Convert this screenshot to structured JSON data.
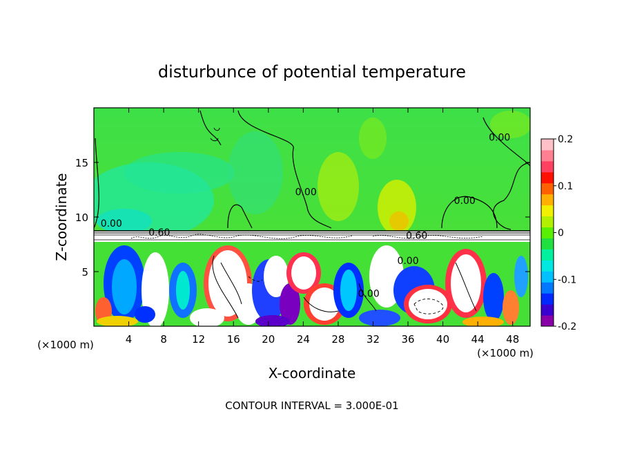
{
  "chart_data": {
    "type": "heatmap",
    "title": "disturbunce of potential temperature",
    "xlabel": "X-coordinate",
    "ylabel": "Z-coordinate",
    "x_unit_left": "(×1000 m)",
    "x_unit_right": "(×1000 m)",
    "xlim": [
      0,
      50
    ],
    "ylim": [
      0,
      20
    ],
    "x_ticks": [
      4,
      8,
      12,
      16,
      20,
      24,
      28,
      32,
      36,
      40,
      44,
      48
    ],
    "y_ticks": [
      5,
      10,
      15
    ],
    "colorbar": {
      "range": [
        -0.2,
        0.2
      ],
      "labels": [
        "0.2",
        "0.1",
        "0",
        "-0.1",
        "-0.2"
      ],
      "label_values": [
        0.2,
        0.1,
        0,
        -0.1,
        -0.2
      ],
      "colors": [
        "#8a00a8",
        "#3a00d0",
        "#0028ff",
        "#0078ff",
        "#00c0ff",
        "#00e8e0",
        "#00f0a0",
        "#20e040",
        "#58f000",
        "#b0f000",
        "#f0f000",
        "#ffb000",
        "#ff6000",
        "#ff1000",
        "#ff4060",
        "#ff8090",
        "#ffc0c8"
      ]
    },
    "contour_labels": [
      {
        "text": "0.00",
        "x": 2,
        "z": 9.1
      },
      {
        "text": "0.00",
        "x": 24.3,
        "z": 12
      },
      {
        "text": "0.00",
        "x": 42.5,
        "z": 11.2
      },
      {
        "text": "0.00",
        "x": 46.5,
        "z": 17
      },
      {
        "text": "0.60",
        "x": 7.5,
        "z": 8.3
      },
      {
        "text": "0.60",
        "x": 37,
        "z": 8
      },
      {
        "text": "0.00",
        "x": 36,
        "z": 5.7
      },
      {
        "text": "0.00",
        "x": 31.5,
        "z": 2.7
      }
    ],
    "footer": "CONTOUR INTERVAL = 3.000E-01"
  }
}
